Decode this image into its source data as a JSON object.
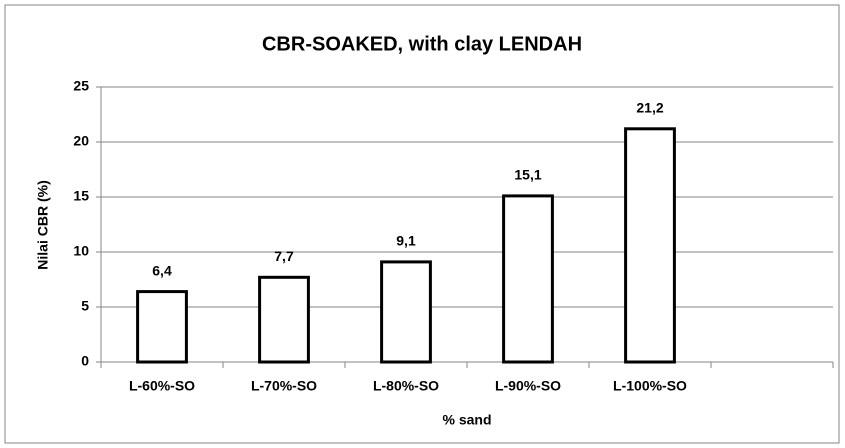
{
  "chart_data": {
    "type": "bar",
    "title": "CBR-SOAKED, with clay LENDAH",
    "x_label": "% sand",
    "y_label": "Nilai CBR (%)",
    "categories": [
      "L-60%-SO",
      "L-70%-SO",
      "L-80%-SO",
      "L-90%-SO",
      "L-100%-SO",
      null
    ],
    "values": [
      6.4,
      7.7,
      9.1,
      15.1,
      21.2,
      null
    ],
    "value_labels": [
      "6,4",
      "7,7",
      "9,1",
      "15,1",
      "21,2",
      null
    ],
    "color": "#ffffff",
    "edge_color": "#000000",
    "ylim": [
      0,
      25
    ],
    "yticks": [
      0,
      5,
      10,
      15,
      20,
      25
    ],
    "grid": true
  }
}
